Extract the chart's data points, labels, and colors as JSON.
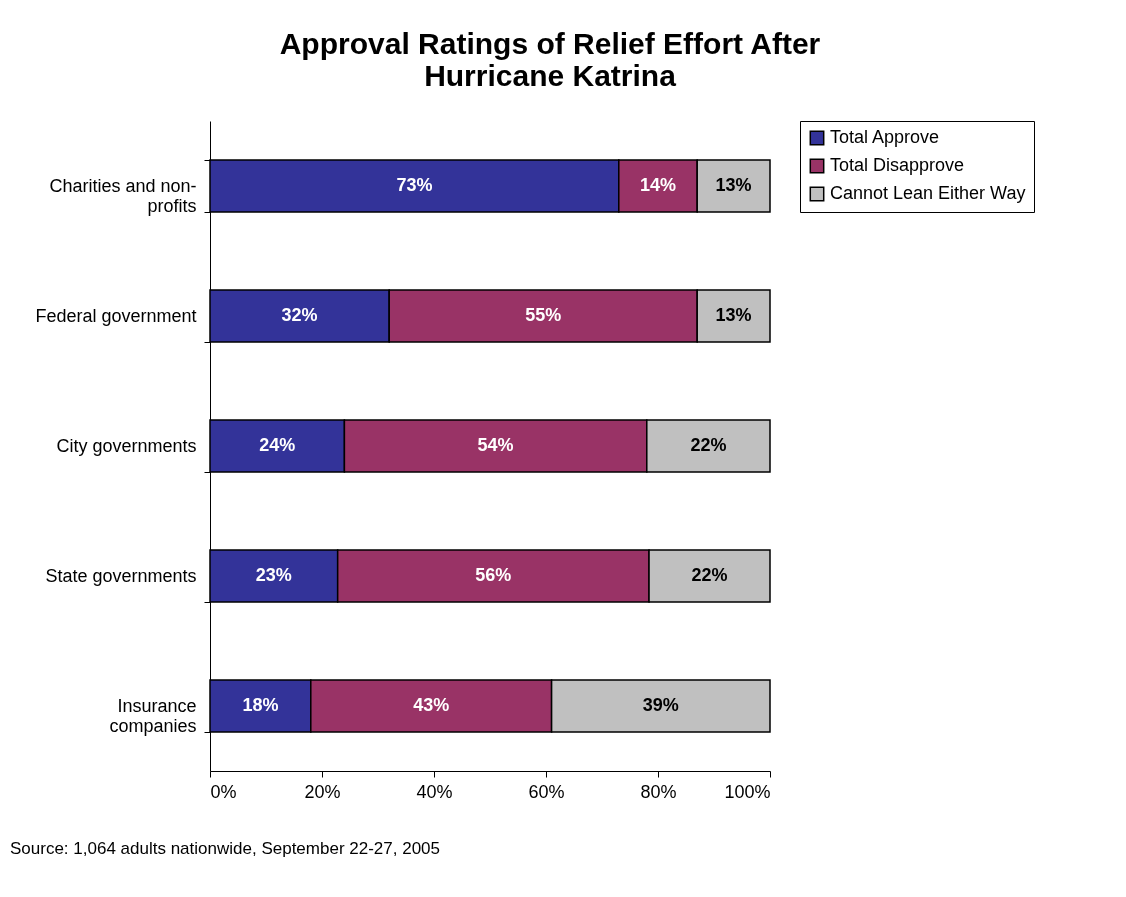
{
  "chart_data": {
    "type": "bar",
    "title": "Approval Ratings of Relief Effort After Hurricane Katrina",
    "orientation": "horizontal",
    "stacked": true,
    "categories": [
      "Charities and non-profits",
      "Federal government",
      "City governments",
      "State governments",
      "Insurance companies"
    ],
    "series": [
      {
        "name": "Total Approve",
        "color": "#333399",
        "values": [
          73,
          32,
          24,
          22.8,
          18
        ],
        "value_labels": [
          "73%",
          "32%",
          "24%",
          "23%",
          "18%"
        ]
      },
      {
        "name": "Total Disapprove",
        "color": "#993366",
        "values": [
          14,
          55,
          54,
          55.6,
          43
        ],
        "value_labels": [
          "14%",
          "55%",
          "54%",
          "56%",
          "43%"
        ]
      },
      {
        "name": "Cannot Lean Either Way",
        "color": "#c0c0c0",
        "values": [
          13,
          13,
          22,
          21.6,
          39
        ],
        "value_labels": [
          "13%",
          "13%",
          "22%",
          "22%",
          "39%"
        ]
      }
    ],
    "xlim": [
      0,
      100
    ],
    "xticks": [
      {
        "value": 0,
        "label": "0%"
      },
      {
        "value": 20,
        "label": "20%"
      },
      {
        "value": 40,
        "label": "40%"
      },
      {
        "value": 60,
        "label": "60%"
      },
      {
        "value": 80,
        "label": "80%"
      },
      {
        "value": 100,
        "label": "100%"
      }
    ],
    "grid": false,
    "legend": "right",
    "annotations": [
      "Source: 1,064 adults nationwide, September 22-27, 2005"
    ]
  }
}
